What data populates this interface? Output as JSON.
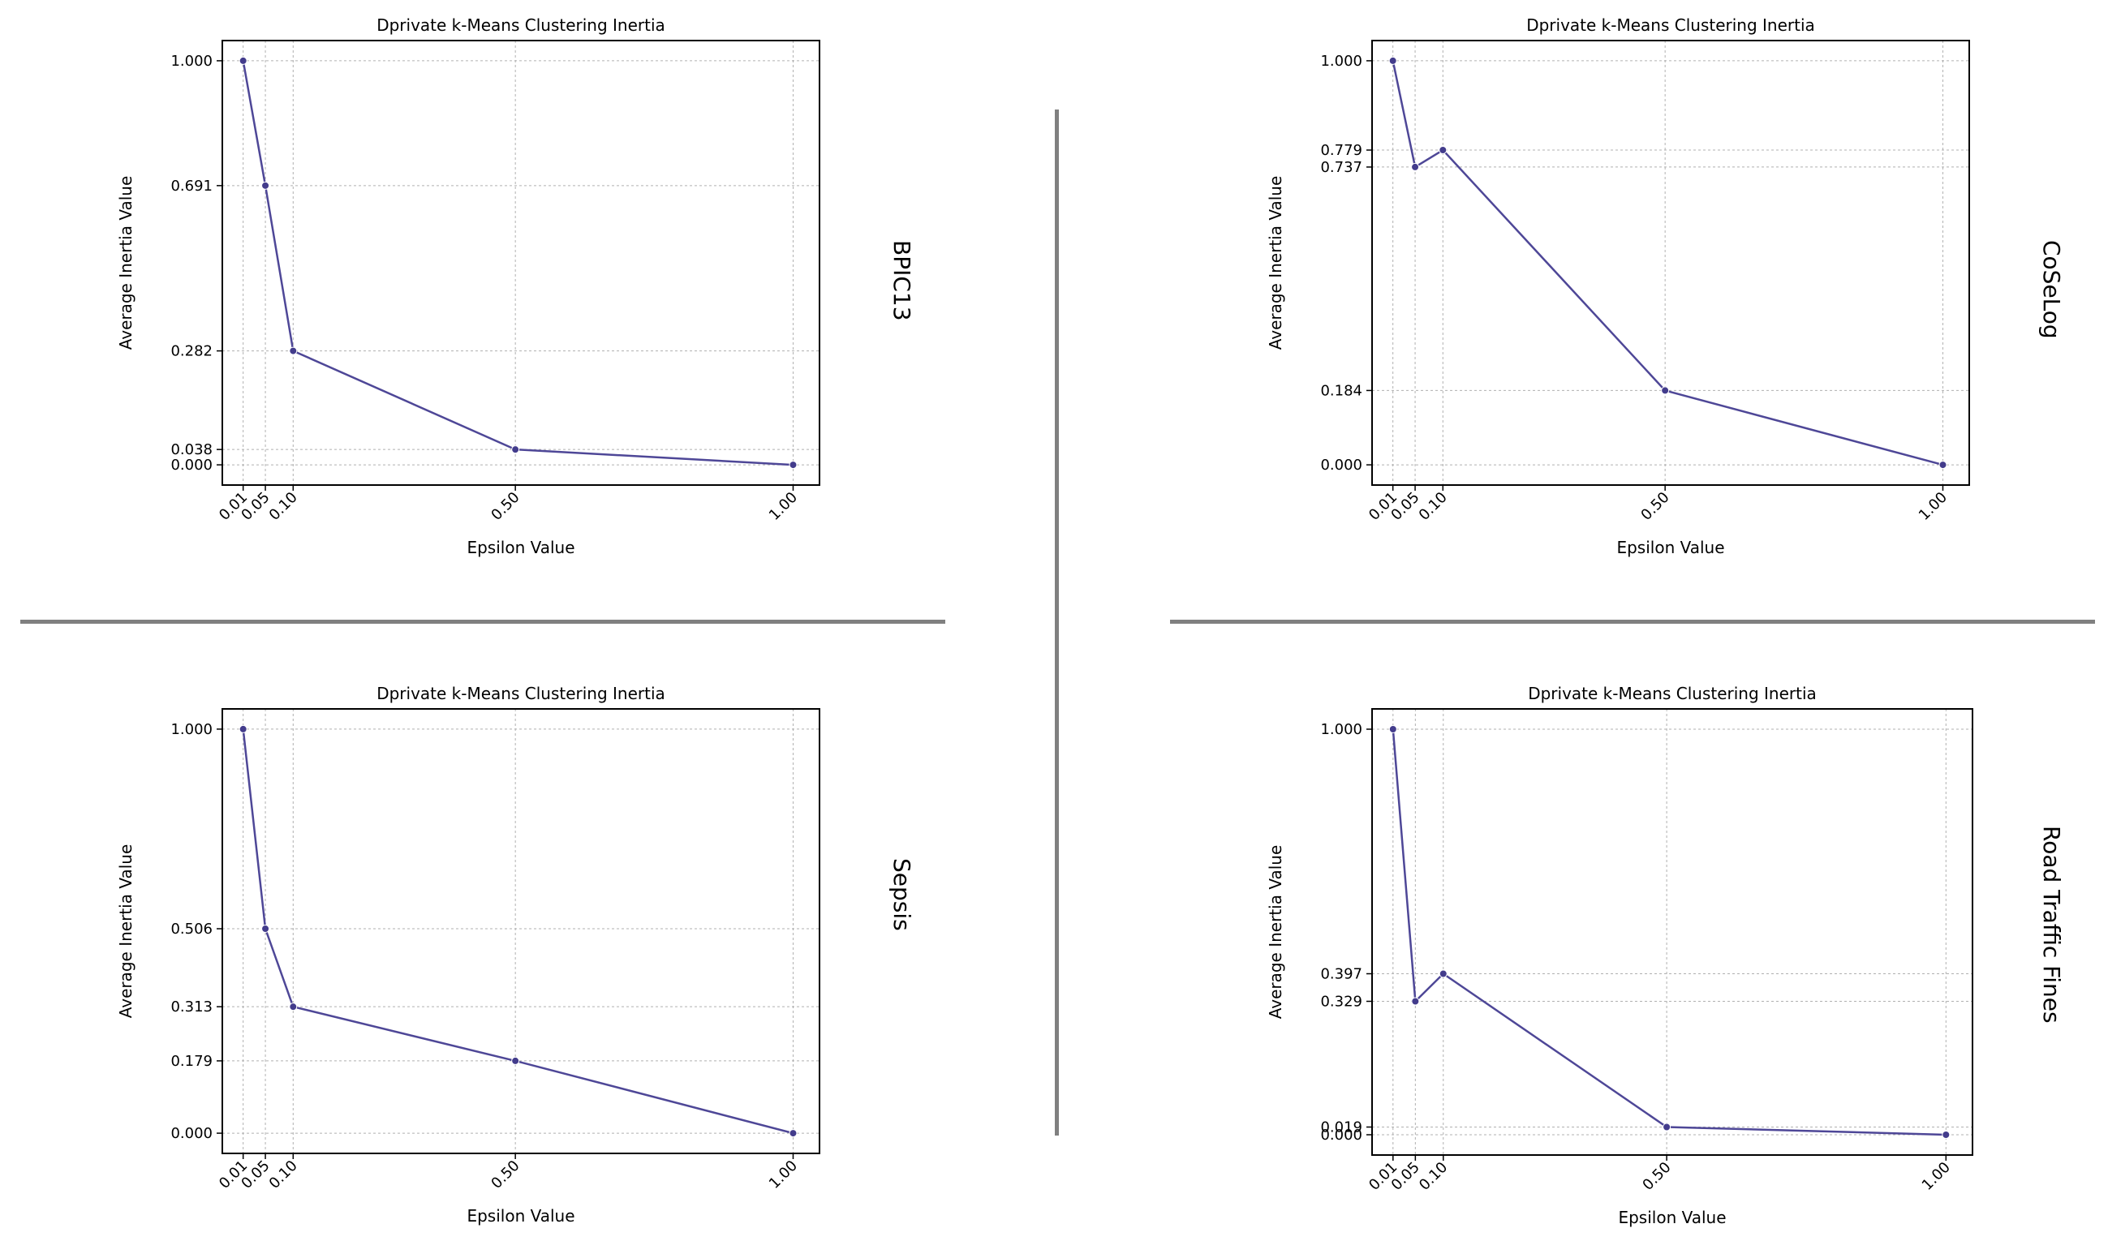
{
  "colors": {
    "line": "#4e4797",
    "marker": "#433c8c",
    "grid": "#b0b0b0",
    "axes": "#000000",
    "divider": "#808080"
  },
  "chart_data": [
    {
      "id": "bpic13",
      "type": "line",
      "panel_label": "BPIC13",
      "title": "Dprivate k-Means Clustering Inertia",
      "xlabel": "Epsilon Value",
      "ylabel": "Average Inertia Value",
      "x": [
        0.01,
        0.05,
        0.1,
        0.5,
        1.0
      ],
      "x_tick_labels": [
        "0.01",
        "0.05",
        "0.10",
        "0.50",
        "1.00"
      ],
      "values": [
        1.0,
        0.691,
        0.282,
        0.038,
        0.0
      ],
      "y_ticks": [
        0.0,
        0.038,
        0.282,
        0.691,
        1.0
      ],
      "y_tick_labels": [
        "0.000",
        "0.038",
        "0.282",
        "0.691",
        "1.000"
      ],
      "xlim": [
        -0.0275,
        1.0475
      ],
      "ylim": [
        -0.05,
        1.05
      ],
      "grid": true,
      "marker": "circle"
    },
    {
      "id": "coselog",
      "type": "line",
      "panel_label": "CoSeLog",
      "title": "Dprivate k-Means Clustering Inertia",
      "xlabel": "Epsilon Value",
      "ylabel": "Average Inertia Value",
      "x": [
        0.01,
        0.05,
        0.1,
        0.5,
        1.0
      ],
      "x_tick_labels": [
        "0.01",
        "0.05",
        "0.10",
        "0.50",
        "1.00"
      ],
      "values": [
        1.0,
        0.737,
        0.779,
        0.184,
        0.0
      ],
      "y_ticks": [
        0.0,
        0.184,
        0.737,
        0.779,
        1.0
      ],
      "y_tick_labels": [
        "0.000",
        "0.184",
        "0.737",
        "0.779",
        "1.000"
      ],
      "xlim": [
        -0.0275,
        1.0475
      ],
      "ylim": [
        -0.05,
        1.05
      ],
      "grid": true,
      "marker": "circle"
    },
    {
      "id": "sepsis",
      "type": "line",
      "panel_label": "Sepsis",
      "title": "Dprivate k-Means Clustering Inertia",
      "xlabel": "Epsilon Value",
      "ylabel": "Average Inertia Value",
      "x": [
        0.01,
        0.05,
        0.1,
        0.5,
        1.0
      ],
      "x_tick_labels": [
        "0.01",
        "0.05",
        "0.10",
        "0.50",
        "1.00"
      ],
      "values": [
        1.0,
        0.506,
        0.313,
        0.179,
        0.0
      ],
      "y_ticks": [
        0.0,
        0.179,
        0.313,
        0.506,
        1.0
      ],
      "y_tick_labels": [
        "0.000",
        "0.179",
        "0.313",
        "0.506",
        "1.000"
      ],
      "xlim": [
        -0.0275,
        1.0475
      ],
      "ylim": [
        -0.05,
        1.05
      ],
      "grid": true,
      "marker": "circle"
    },
    {
      "id": "road-traffic-fines",
      "type": "line",
      "panel_label": "Road Traffic Fines",
      "title": "Dprivate k-Means Clustering Inertia",
      "xlabel": "Epsilon Value",
      "ylabel": "Average Inertia Value",
      "x": [
        0.01,
        0.05,
        0.1,
        0.5,
        1.0
      ],
      "x_tick_labels": [
        "0.01",
        "0.05",
        "0.10",
        "0.50",
        "1.00"
      ],
      "values": [
        1.0,
        0.329,
        0.397,
        0.019,
        0.0
      ],
      "y_ticks": [
        0.0,
        0.019,
        0.329,
        0.397,
        1.0
      ],
      "y_tick_labels": [
        "0.000",
        "0.019",
        "0.329",
        "0.397",
        "1.000"
      ],
      "xlim": [
        -0.0275,
        1.0475
      ],
      "ylim": [
        -0.05,
        1.05
      ],
      "grid": true,
      "marker": "circle"
    }
  ]
}
